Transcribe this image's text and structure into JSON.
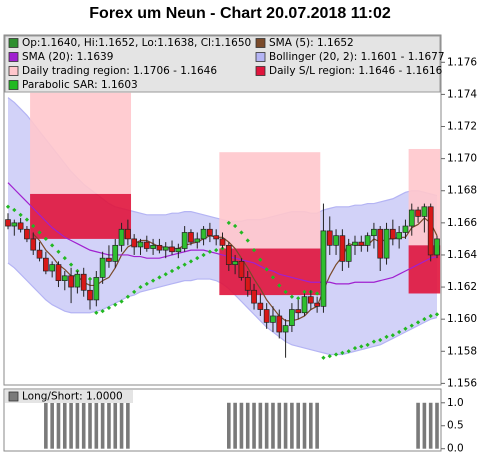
{
  "chart_data": [
    {
      "type": "candlestick",
      "title": "Forex um Neun - Chart 20.07.2018 11:02",
      "candles": {
        "name": "Op:1.1640, Hi:1.1652, Lo:1.1638, Cl:1.1650",
        "color": "#2f8f2f",
        "up_color": "#2fbf2f",
        "down_color": "#d81818",
        "open": [
          1.1662,
          1.1658,
          1.166,
          1.1656,
          1.165,
          1.1643,
          1.1638,
          1.163,
          1.1634,
          1.1624,
          1.1627,
          1.162,
          1.1628,
          1.1618,
          1.1612,
          1.1626,
          1.1638,
          1.1636,
          1.1646,
          1.1656,
          1.165,
          1.1645,
          1.1648,
          1.1644,
          1.1646,
          1.1643,
          1.1645,
          1.1642,
          1.1644,
          1.1654,
          1.1648,
          1.165,
          1.1656,
          1.1652,
          1.165,
          1.1646,
          1.1634,
          1.1636,
          1.1626,
          1.1618,
          1.161,
          1.1606,
          1.1598,
          1.1602,
          1.1592,
          1.1596,
          1.1606,
          1.1604,
          1.1614,
          1.161,
          1.1608,
          1.1655,
          1.1646,
          1.1652,
          1.1636,
          1.1646,
          1.1648,
          1.1646,
          1.1652,
          1.1656,
          1.1638,
          1.1656,
          1.165,
          1.1654,
          1.1658,
          1.1668,
          1.1664,
          1.167,
          1.164
        ],
        "high": [
          1.1666,
          1.1662,
          1.1663,
          1.1658,
          1.1654,
          1.1648,
          1.1642,
          1.1636,
          1.1636,
          1.163,
          1.1632,
          1.163,
          1.1632,
          1.1624,
          1.163,
          1.1642,
          1.1646,
          1.165,
          1.166,
          1.1662,
          1.1653,
          1.165,
          1.1652,
          1.165,
          1.165,
          1.1648,
          1.1649,
          1.1647,
          1.1658,
          1.1656,
          1.1654,
          1.1658,
          1.166,
          1.1656,
          1.1654,
          1.1648,
          1.164,
          1.1638,
          1.163,
          1.1622,
          1.1616,
          1.161,
          1.1608,
          1.1606,
          1.16,
          1.161,
          1.1612,
          1.1616,
          1.1618,
          1.1614,
          1.1672,
          1.1664,
          1.1656,
          1.1656,
          1.165,
          1.1652,
          1.1652,
          1.1654,
          1.166,
          1.1658,
          1.166,
          1.1662,
          1.1658,
          1.1662,
          1.1672,
          1.167,
          1.1672,
          1.1672,
          1.1652
        ],
        "low": [
          1.1656,
          1.1652,
          1.1654,
          1.1648,
          1.164,
          1.1636,
          1.1628,
          1.1626,
          1.162,
          1.1618,
          1.161,
          1.1616,
          1.1614,
          1.1606,
          1.1608,
          1.1622,
          1.1632,
          1.1632,
          1.1642,
          1.1646,
          1.164,
          1.164,
          1.1642,
          1.164,
          1.1641,
          1.1638,
          1.164,
          1.1638,
          1.1642,
          1.1646,
          1.1644,
          1.1646,
          1.1648,
          1.1646,
          1.1644,
          1.163,
          1.1628,
          1.1624,
          1.1614,
          1.1606,
          1.1602,
          1.1594,
          1.1592,
          1.1588,
          1.1576,
          1.1592,
          1.16,
          1.1602,
          1.1606,
          1.1604,
          1.1604,
          1.164,
          1.164,
          1.163,
          1.1632,
          1.164,
          1.1642,
          1.1642,
          1.1644,
          1.163,
          1.1634,
          1.1646,
          1.1644,
          1.165,
          1.1652,
          1.166,
          1.1654,
          1.1636,
          1.1638
        ],
        "close": [
          1.1658,
          1.166,
          1.1656,
          1.165,
          1.1643,
          1.1638,
          1.163,
          1.1634,
          1.1624,
          1.1627,
          1.162,
          1.1628,
          1.1618,
          1.1612,
          1.1626,
          1.1638,
          1.1636,
          1.1646,
          1.1656,
          1.165,
          1.1645,
          1.1648,
          1.1644,
          1.1646,
          1.1643,
          1.1645,
          1.1642,
          1.1644,
          1.1654,
          1.1648,
          1.165,
          1.1656,
          1.1652,
          1.165,
          1.1646,
          1.1634,
          1.1636,
          1.1626,
          1.1618,
          1.161,
          1.1606,
          1.1598,
          1.1602,
          1.1592,
          1.1596,
          1.1606,
          1.1604,
          1.1614,
          1.161,
          1.1608,
          1.1655,
          1.1646,
          1.1652,
          1.1636,
          1.1646,
          1.1648,
          1.1646,
          1.1652,
          1.1656,
          1.1638,
          1.1656,
          1.165,
          1.1654,
          1.1658,
          1.1668,
          1.1664,
          1.167,
          1.164,
          1.165
        ]
      },
      "regions": [
        {
          "from": 4,
          "to": 19,
          "trading": [
            1.1741,
            1.1678
          ],
          "stop_loss": [
            1.1678,
            1.165
          ]
        },
        {
          "from": 34,
          "to": 49,
          "trading": [
            1.1704,
            1.1644
          ],
          "stop_loss": [
            1.1644,
            1.1615
          ]
        },
        {
          "from": 64,
          "to": 68,
          "trading": [
            1.1706,
            1.1646
          ],
          "stop_loss": [
            1.1646,
            1.1616
          ]
        }
      ],
      "region_legend": [
        {
          "name": "Daily trading region: 1.1706 - 1.1646",
          "color": "#ffc6cc"
        },
        {
          "name": "Daily S/L region: 1.1646 - 1.1616",
          "color": "#e0143c"
        }
      ],
      "series": [
        {
          "name": "SMA (5): 1.1652",
          "color": "#7a4a2a",
          "style": "line",
          "values": [
            null,
            null,
            null,
            null,
            1.1653,
            1.1649,
            1.1643,
            1.1639,
            1.1634,
            1.1631,
            1.1627,
            1.1627,
            1.1623,
            1.1621,
            1.1621,
            1.1624,
            1.1626,
            1.1632,
            1.164,
            1.1645,
            1.1647,
            1.1649,
            1.1649,
            1.1647,
            1.1645,
            1.1645,
            1.1644,
            1.1644,
            1.1646,
            1.1647,
            1.1648,
            1.165,
            1.1652,
            1.1651,
            1.1651,
            1.1648,
            1.1644,
            1.1638,
            1.1632,
            1.1625,
            1.1619,
            1.1612,
            1.1607,
            1.1602,
            1.1599,
            1.1599,
            1.16,
            1.1602,
            1.1606,
            1.1608,
            1.1618,
            1.1627,
            1.1634,
            1.1639,
            1.1647,
            1.1646,
            1.1646,
            1.1646,
            1.165,
            1.1648,
            1.165,
            1.165,
            1.1651,
            1.1651,
            1.1657,
            1.1659,
            1.1663,
            1.166,
            1.1652
          ]
        },
        {
          "name": "SMA (20): 1.1639",
          "color": "#a020d0",
          "style": "line",
          "values": [
            1.1685,
            1.1681,
            1.1677,
            1.1673,
            1.1669,
            1.1665,
            1.1661,
            1.1657,
            1.1654,
            1.1651,
            1.1649,
            1.1647,
            1.1645,
            1.1643,
            1.1642,
            1.1641,
            1.164,
            1.164,
            1.164,
            1.164,
            1.1639,
            1.1639,
            1.1638,
            1.1638,
            1.1638,
            1.1639,
            1.164,
            1.1641,
            1.1642,
            1.1643,
            1.1643,
            1.1643,
            1.1642,
            1.1641,
            1.164,
            1.1639,
            1.1638,
            1.1637,
            1.1636,
            1.1635,
            1.1633,
            1.1631,
            1.163,
            1.1628,
            1.1627,
            1.1626,
            1.1625,
            1.1624,
            1.1623,
            1.1623,
            1.1623,
            1.1623,
            1.1622,
            1.1622,
            1.1622,
            1.1623,
            1.1623,
            1.1623,
            1.1623,
            1.1624,
            1.1625,
            1.1626,
            1.1628,
            1.163,
            1.1632,
            1.1634,
            1.1636,
            1.1638,
            1.1639
          ]
        },
        {
          "name": "Bollinger (20, 2): 1.1601 - 1.1677",
          "color": "#b4b4f4",
          "style": "band",
          "upper": [
            1.1738,
            1.1735,
            1.1731,
            1.1727,
            1.1722,
            1.1717,
            1.1712,
            1.1707,
            1.1702,
            1.1697,
            1.1692,
            1.1688,
            1.1684,
            1.1681,
            1.1678,
            1.1675,
            1.1672,
            1.167,
            1.1669,
            1.1668,
            1.1667,
            1.1666,
            1.1665,
            1.1665,
            1.1665,
            1.1665,
            1.1666,
            1.1666,
            1.1667,
            1.1667,
            1.1666,
            1.1665,
            1.1664,
            1.1663,
            1.1662,
            1.1661,
            1.1661,
            1.1661,
            1.1662,
            1.1662,
            1.1662,
            1.1663,
            1.1664,
            1.1665,
            1.1666,
            1.1667,
            1.1667,
            1.1667,
            1.1666,
            1.1666,
            1.1668,
            1.1669,
            1.167,
            1.167,
            1.167,
            1.1671,
            1.1671,
            1.1672,
            1.1672,
            1.1673,
            1.1674,
            1.1675,
            1.1677,
            1.1679,
            1.168,
            1.168,
            1.1679,
            1.1678,
            1.1677
          ],
          "lower": [
            1.1635,
            1.1632,
            1.1628,
            1.1624,
            1.162,
            1.1616,
            1.1612,
            1.1609,
            1.1607,
            1.1605,
            1.1604,
            1.1604,
            1.1604,
            1.1604,
            1.1605,
            1.1606,
            1.1608,
            1.161,
            1.1612,
            1.1614,
            1.1615,
            1.1617,
            1.1618,
            1.1619,
            1.162,
            1.1621,
            1.1622,
            1.1623,
            1.1624,
            1.1624,
            1.1625,
            1.1625,
            1.1625,
            1.1624,
            1.1622,
            1.1619,
            1.1615,
            1.1611,
            1.1607,
            1.1603,
            1.1599,
            1.1595,
            1.1592,
            1.1589,
            1.1586,
            1.1584,
            1.1583,
            1.1582,
            1.1581,
            1.158,
            1.1579,
            1.1578,
            1.1578,
            1.1578,
            1.1579,
            1.158,
            1.1581,
            1.1582,
            1.1583,
            1.1584,
            1.1586,
            1.1588,
            1.159,
            1.1592,
            1.1594,
            1.1596,
            1.1598,
            1.16,
            1.1601
          ]
        },
        {
          "name": "Parabolic SAR: 1.1603",
          "color": "#22b822",
          "style": "dots",
          "values": [
            1.167,
            1.1668,
            1.1665,
            1.1662,
            1.1658,
            1.1654,
            1.165,
            1.1646,
            1.1642,
            1.1638,
            1.1634,
            1.163,
            1.1627,
            1.1625,
            1.1604,
            1.1605,
            1.1607,
            1.1609,
            1.1611,
            1.1614,
            1.1617,
            1.162,
            1.1622,
            1.1624,
            1.1626,
            1.1628,
            1.163,
            1.1632,
            1.1634,
            1.1636,
            1.1638,
            1.164,
            1.1642,
            1.1643,
            1.1644,
            1.166,
            1.1658,
            1.1654,
            1.1649,
            1.1643,
            1.1637,
            1.1631,
            1.1626,
            1.1621,
            1.1617,
            1.1614,
            1.1613,
            1.1617,
            1.1617,
            1.1616,
            1.1576,
            1.1577,
            1.1578,
            1.1579,
            1.158,
            1.1582,
            1.1583,
            1.1584,
            1.1586,
            1.1587,
            1.1589,
            1.159,
            1.1592,
            1.1594,
            1.1596,
            1.1598,
            1.16,
            1.1602,
            1.1603
          ]
        }
      ],
      "ylim": [
        1.1559,
        1.1777
      ],
      "yticks": [
        1.156,
        1.158,
        {
          "value": 1.16,
          "label": "1.160"
        },
        1.162,
        1.164,
        1.166,
        1.168,
        {
          "value": 1.17,
          "label": "1.170"
        },
        1.172,
        1.174,
        1.176
      ]
    },
    {
      "type": "bar",
      "name": "Long/Short: 1.0000",
      "color": "#7a7a7a",
      "values": [
        0,
        0,
        0,
        0,
        0,
        0,
        1,
        1,
        1,
        1,
        1,
        1,
        1,
        1,
        1,
        1,
        1,
        1,
        1,
        1,
        0,
        0,
        0,
        0,
        0,
        0,
        0,
        0,
        0,
        0,
        0,
        0,
        0,
        0,
        0,
        1,
        1,
        1,
        1,
        1,
        1,
        1,
        1,
        1,
        1,
        1,
        1,
        1,
        1,
        1,
        0,
        0,
        0,
        0,
        0,
        0,
        0,
        0,
        0,
        0,
        0,
        0,
        0,
        0,
        0,
        1,
        1,
        1,
        1
      ],
      "ylim": [
        -0.05,
        1.3
      ],
      "yticks": [
        {
          "value": 0,
          "label": "0.0"
        },
        0.5,
        {
          "value": 1,
          "label": "1.0"
        }
      ]
    }
  ]
}
